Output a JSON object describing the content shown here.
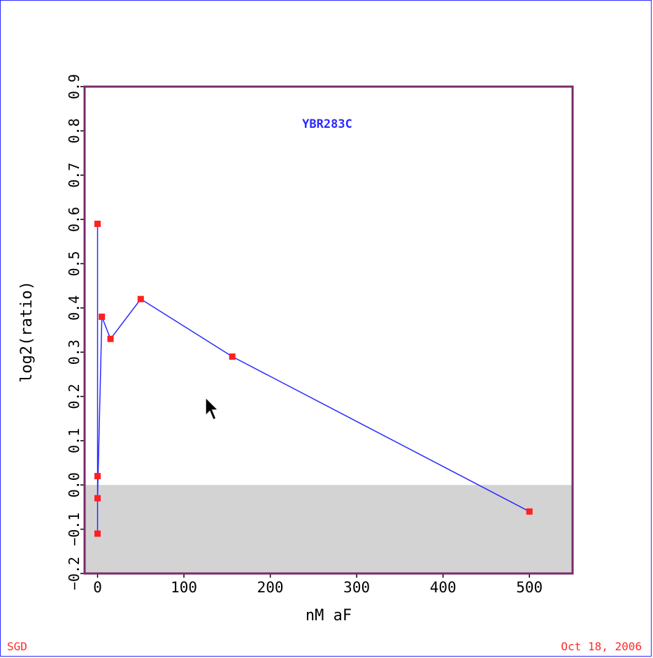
{
  "footer": {
    "left": "SGD",
    "right": "Oct 18, 2006"
  },
  "chart_data": {
    "type": "line",
    "title": "YBR283C",
    "xlabel": "nM aF",
    "ylabel": "log2(ratio)",
    "xlim": [
      -15,
      550
    ],
    "ylim": [
      -0.2,
      0.9
    ],
    "xticks": [
      0,
      100,
      200,
      300,
      400,
      500
    ],
    "yticks": [
      -0.2,
      -0.1,
      0.0,
      0.1,
      0.2,
      0.3,
      0.4,
      0.5,
      0.6,
      0.7,
      0.8,
      0.9
    ],
    "ytick_labels": [
      "−0.2",
      "−0.1",
      "0.0",
      "0.1",
      "0.2",
      "0.3",
      "0.4",
      "0.5",
      "0.6",
      "0.7",
      "0.8",
      "0.9"
    ],
    "shaded_region": {
      "y_from": -0.2,
      "y_to": 0.0,
      "color": "#d3d3d3"
    },
    "series": [
      {
        "color": "#2a2aff",
        "marker_color": "#ff2020",
        "x": [
          0,
          0,
          0,
          0,
          5,
          15,
          50,
          156,
          500
        ],
        "y": [
          0.02,
          -0.11,
          0.59,
          -0.03,
          0.38,
          0.33,
          0.42,
          0.29,
          -0.06
        ]
      }
    ]
  }
}
